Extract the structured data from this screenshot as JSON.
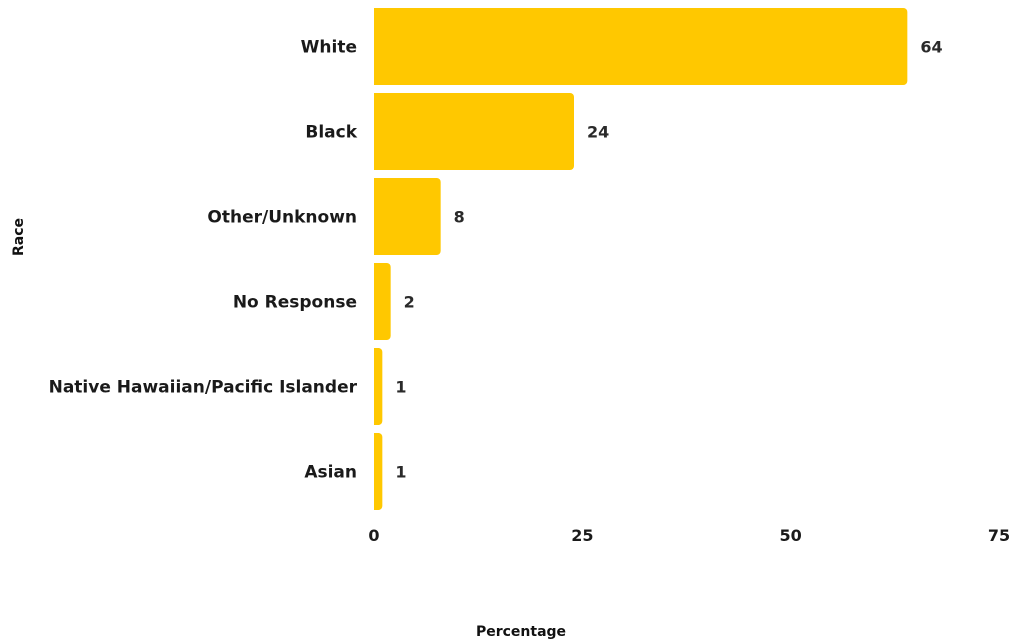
{
  "chart_data": {
    "type": "bar",
    "orientation": "horizontal",
    "categories": [
      "White",
      "Black",
      "Other/Unknown",
      "No Response",
      "Native Hawaiian/Pacific Islander",
      "Asian"
    ],
    "values": [
      64,
      24,
      8,
      2,
      1,
      1
    ],
    "value_labels": [
      "64",
      "24",
      "8",
      "2",
      "1",
      "1"
    ],
    "xlabel": "Percentage",
    "ylabel": "Race",
    "xlim": [
      0,
      75
    ],
    "xticks": [
      "0",
      "25",
      "50",
      "75"
    ],
    "bar_color": "#FFC800",
    "grid": false,
    "legend": "none"
  }
}
